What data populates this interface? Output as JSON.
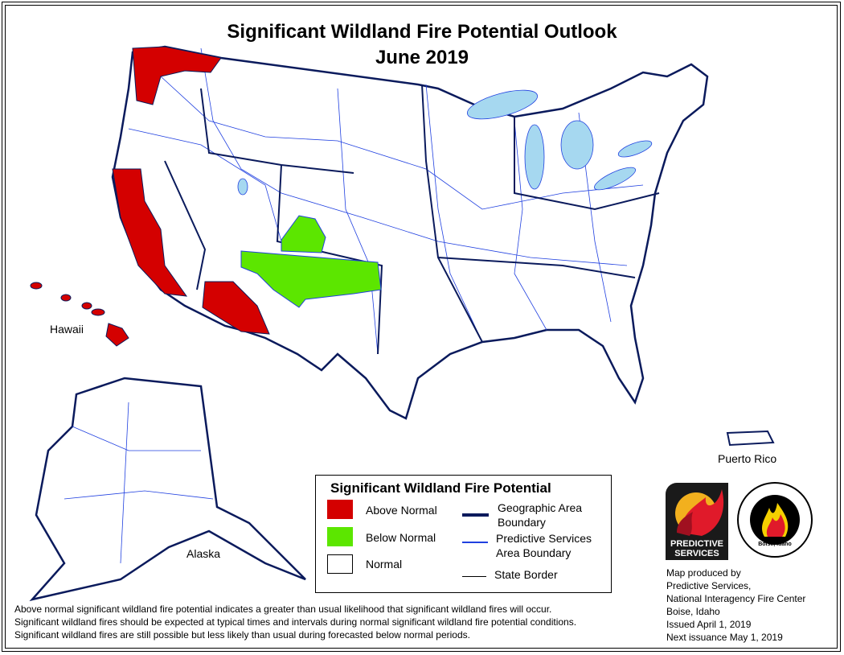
{
  "title": {
    "line1": "Significant Wildland Fire Potential Outlook",
    "line2": "June 2019"
  },
  "map_labels": {
    "hawaii": "Hawaii",
    "alaska": "Alaska",
    "puerto_rico": "Puerto Rico"
  },
  "legend": {
    "title": "Significant Wildland Fire Potential",
    "categories": [
      {
        "label": "Above Normal",
        "color": "#d40000"
      },
      {
        "label": "Below Normal",
        "color": "#5ce600"
      },
      {
        "label": "Normal",
        "color": "#ffffff"
      }
    ],
    "lines": [
      {
        "label_line1": "Geographic Area",
        "label_line2": "Boundary",
        "color": "#0a1a5c"
      },
      {
        "label_line1": "Predictive Services",
        "label_line2": "Area Boundary",
        "color": "#2040e0"
      },
      {
        "label_line1": "State Border",
        "label_line2": "",
        "color": "#000000"
      }
    ]
  },
  "regions": {
    "above_normal": [
      "Western Washington",
      "Coastal and central California",
      "Southern California",
      "Southern Arizona"
    ],
    "below_normal": [
      "Northern New Mexico and southern Colorado",
      "Northern Arizona"
    ]
  },
  "notes": [
    "Above normal significant wildland fire potential indicates a greater than usual likelihood that significant wildland fires will occur.",
    "Significant wildland fires should be expected at typical times and intervals during normal significant wildland fire potential conditions.",
    "Significant wildland fires are still possible but less likely than usual during forecasted below normal periods."
  ],
  "credits": [
    "Map produced by",
    "Predictive Services,",
    "National Interagency Fire Center",
    "Boise, Idaho",
    "Issued April 1, 2019",
    "Next issuance May 1, 2019"
  ],
  "logos": {
    "predictive_services": "PREDICTIVE SERVICES",
    "nifc": "NATIONAL INTERAGENCY FIRE CENTER",
    "nifc_city": "Boise, Idaho"
  },
  "colors": {
    "water": "#a6d8f0",
    "geographic_boundary": "#0a1a5c",
    "ps_boundary": "#2040e0"
  }
}
